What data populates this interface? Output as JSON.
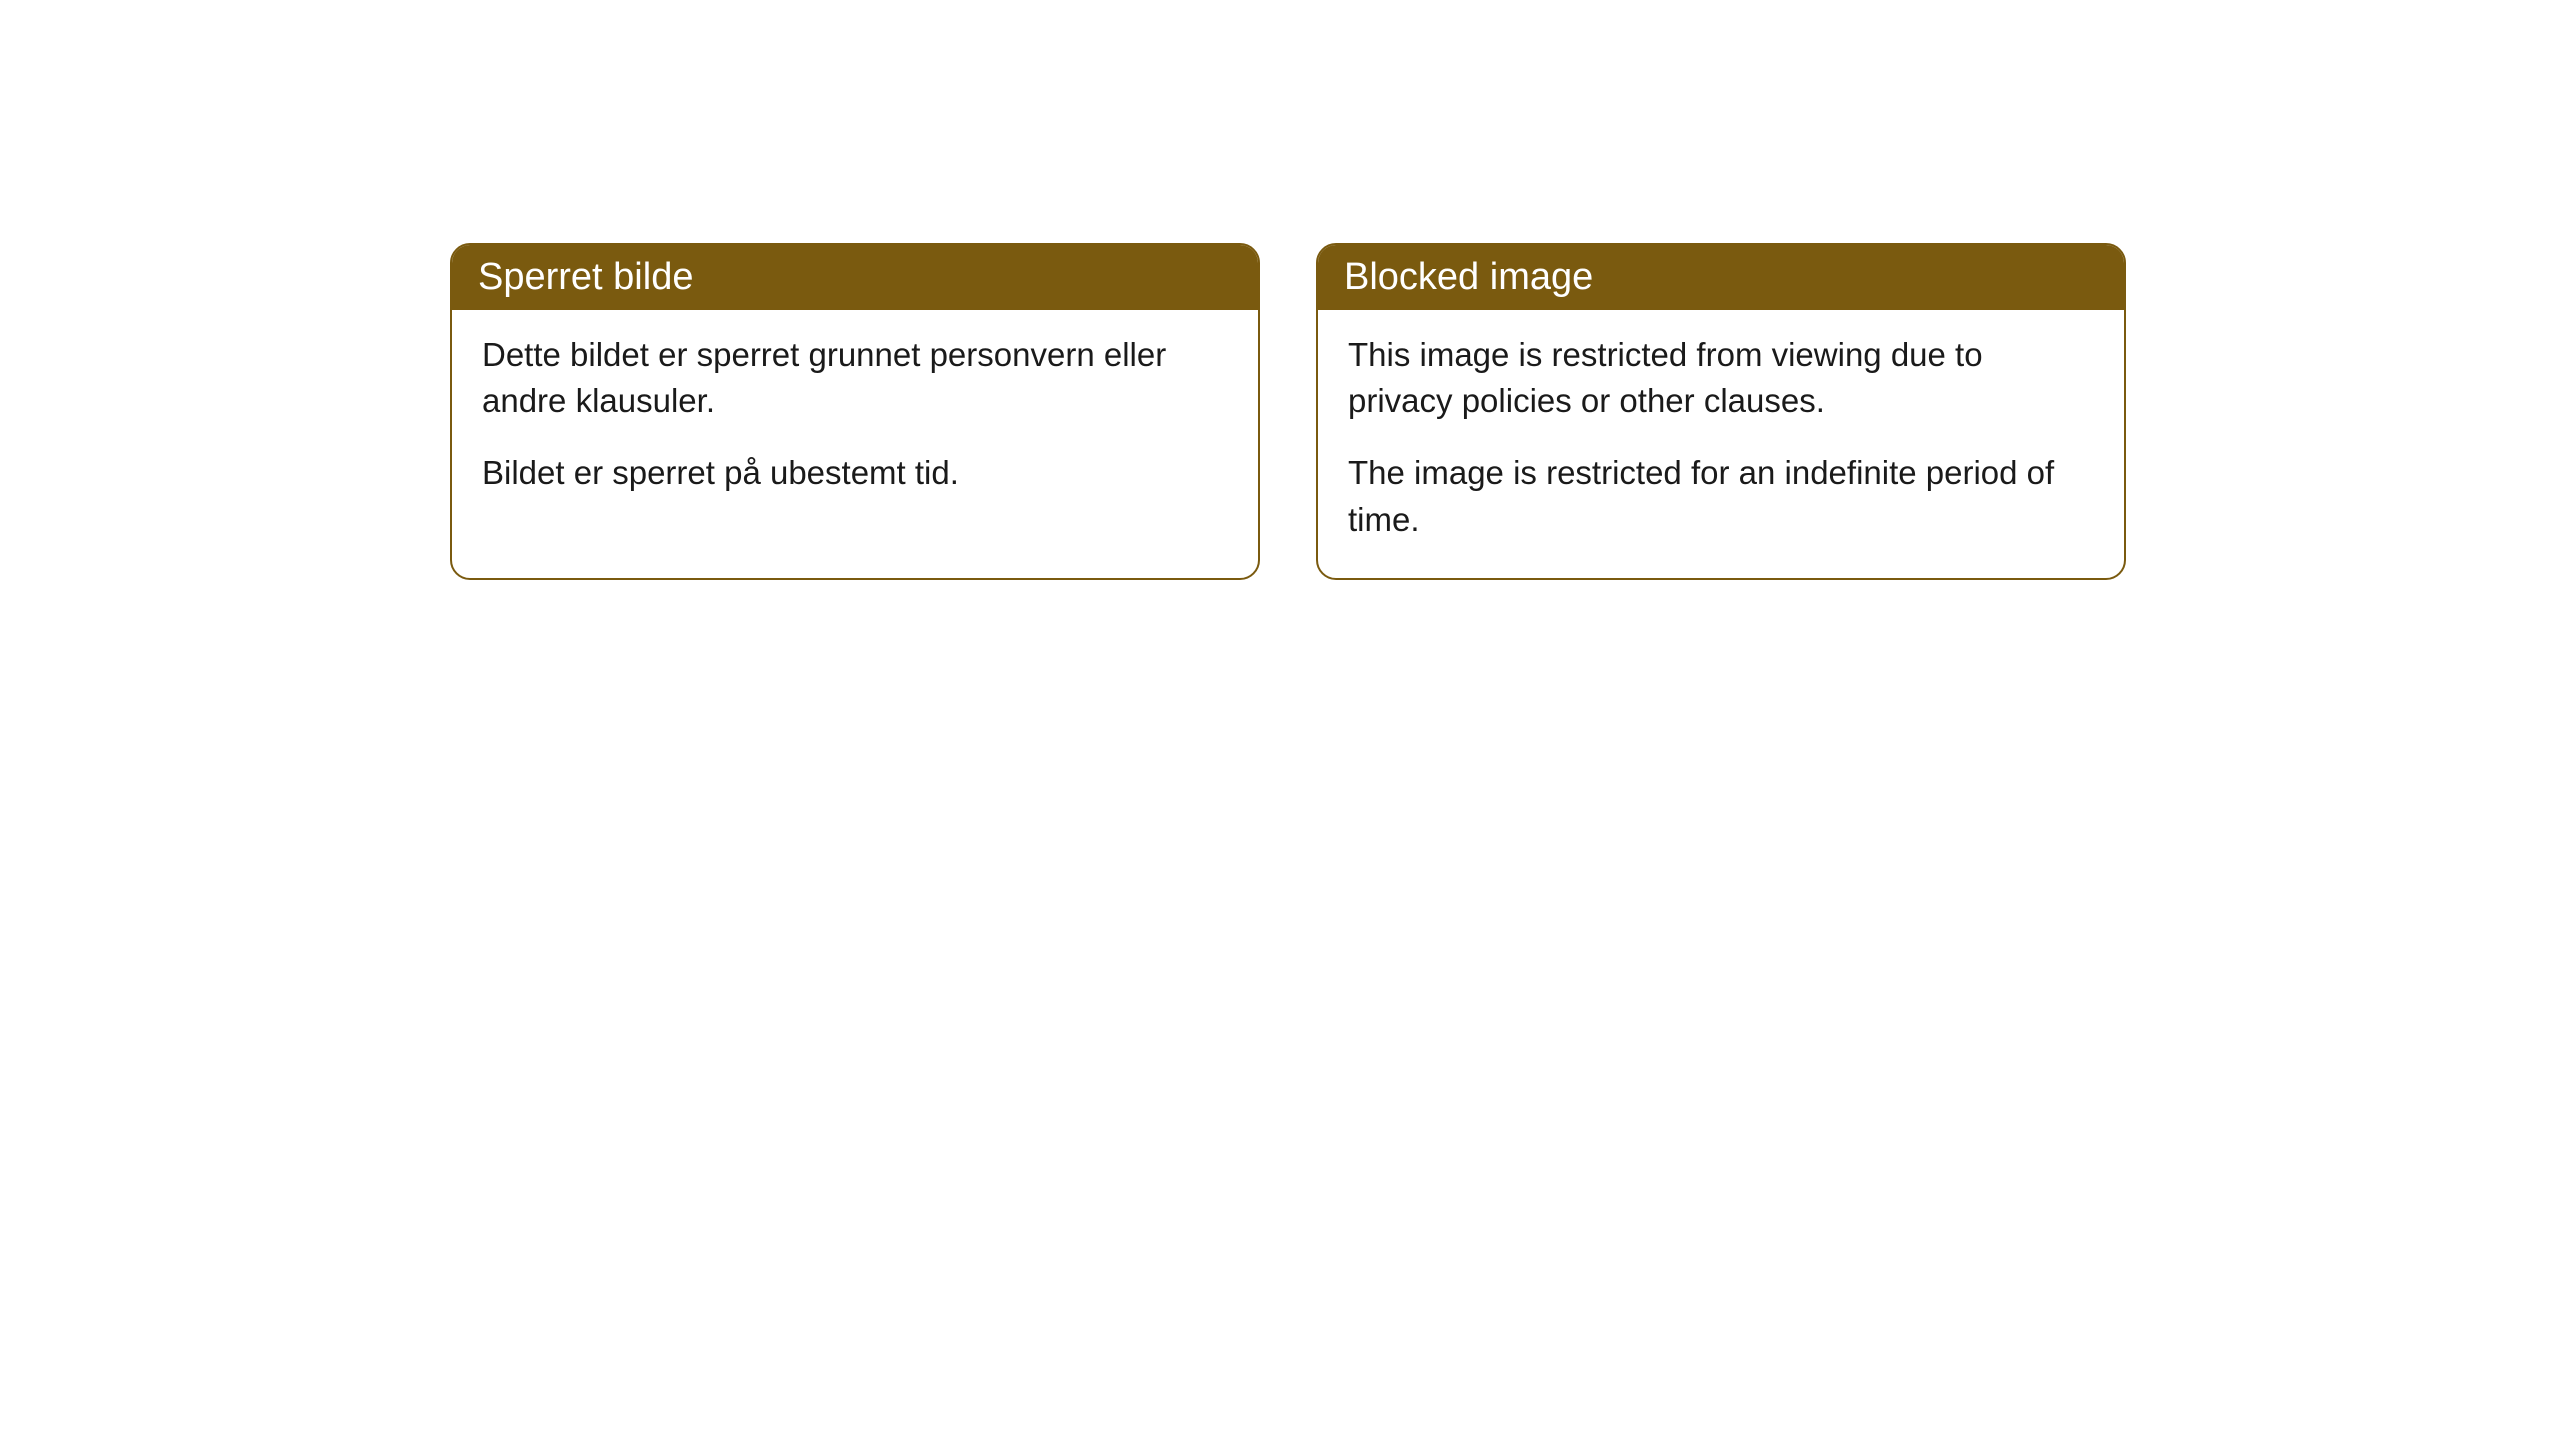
{
  "cards": [
    {
      "title": "Sperret bilde",
      "paragraph1": "Dette bildet er sperret grunnet personvern eller andre klausuler.",
      "paragraph2": "Bildet er sperret på ubestemt tid."
    },
    {
      "title": "Blocked image",
      "paragraph1": "This image is restricted from viewing due to privacy policies or other clauses.",
      "paragraph2": "The image is restricted for an indefinite period of time."
    }
  ],
  "styling": {
    "header_bg_color": "#7a5a0f",
    "header_text_color": "#ffffff",
    "border_color": "#7a5a0f",
    "body_text_color": "#1a1a1a",
    "card_bg_color": "#ffffff",
    "page_bg_color": "#ffffff",
    "border_radius": 20,
    "header_fontsize": 38,
    "body_fontsize": 33
  }
}
